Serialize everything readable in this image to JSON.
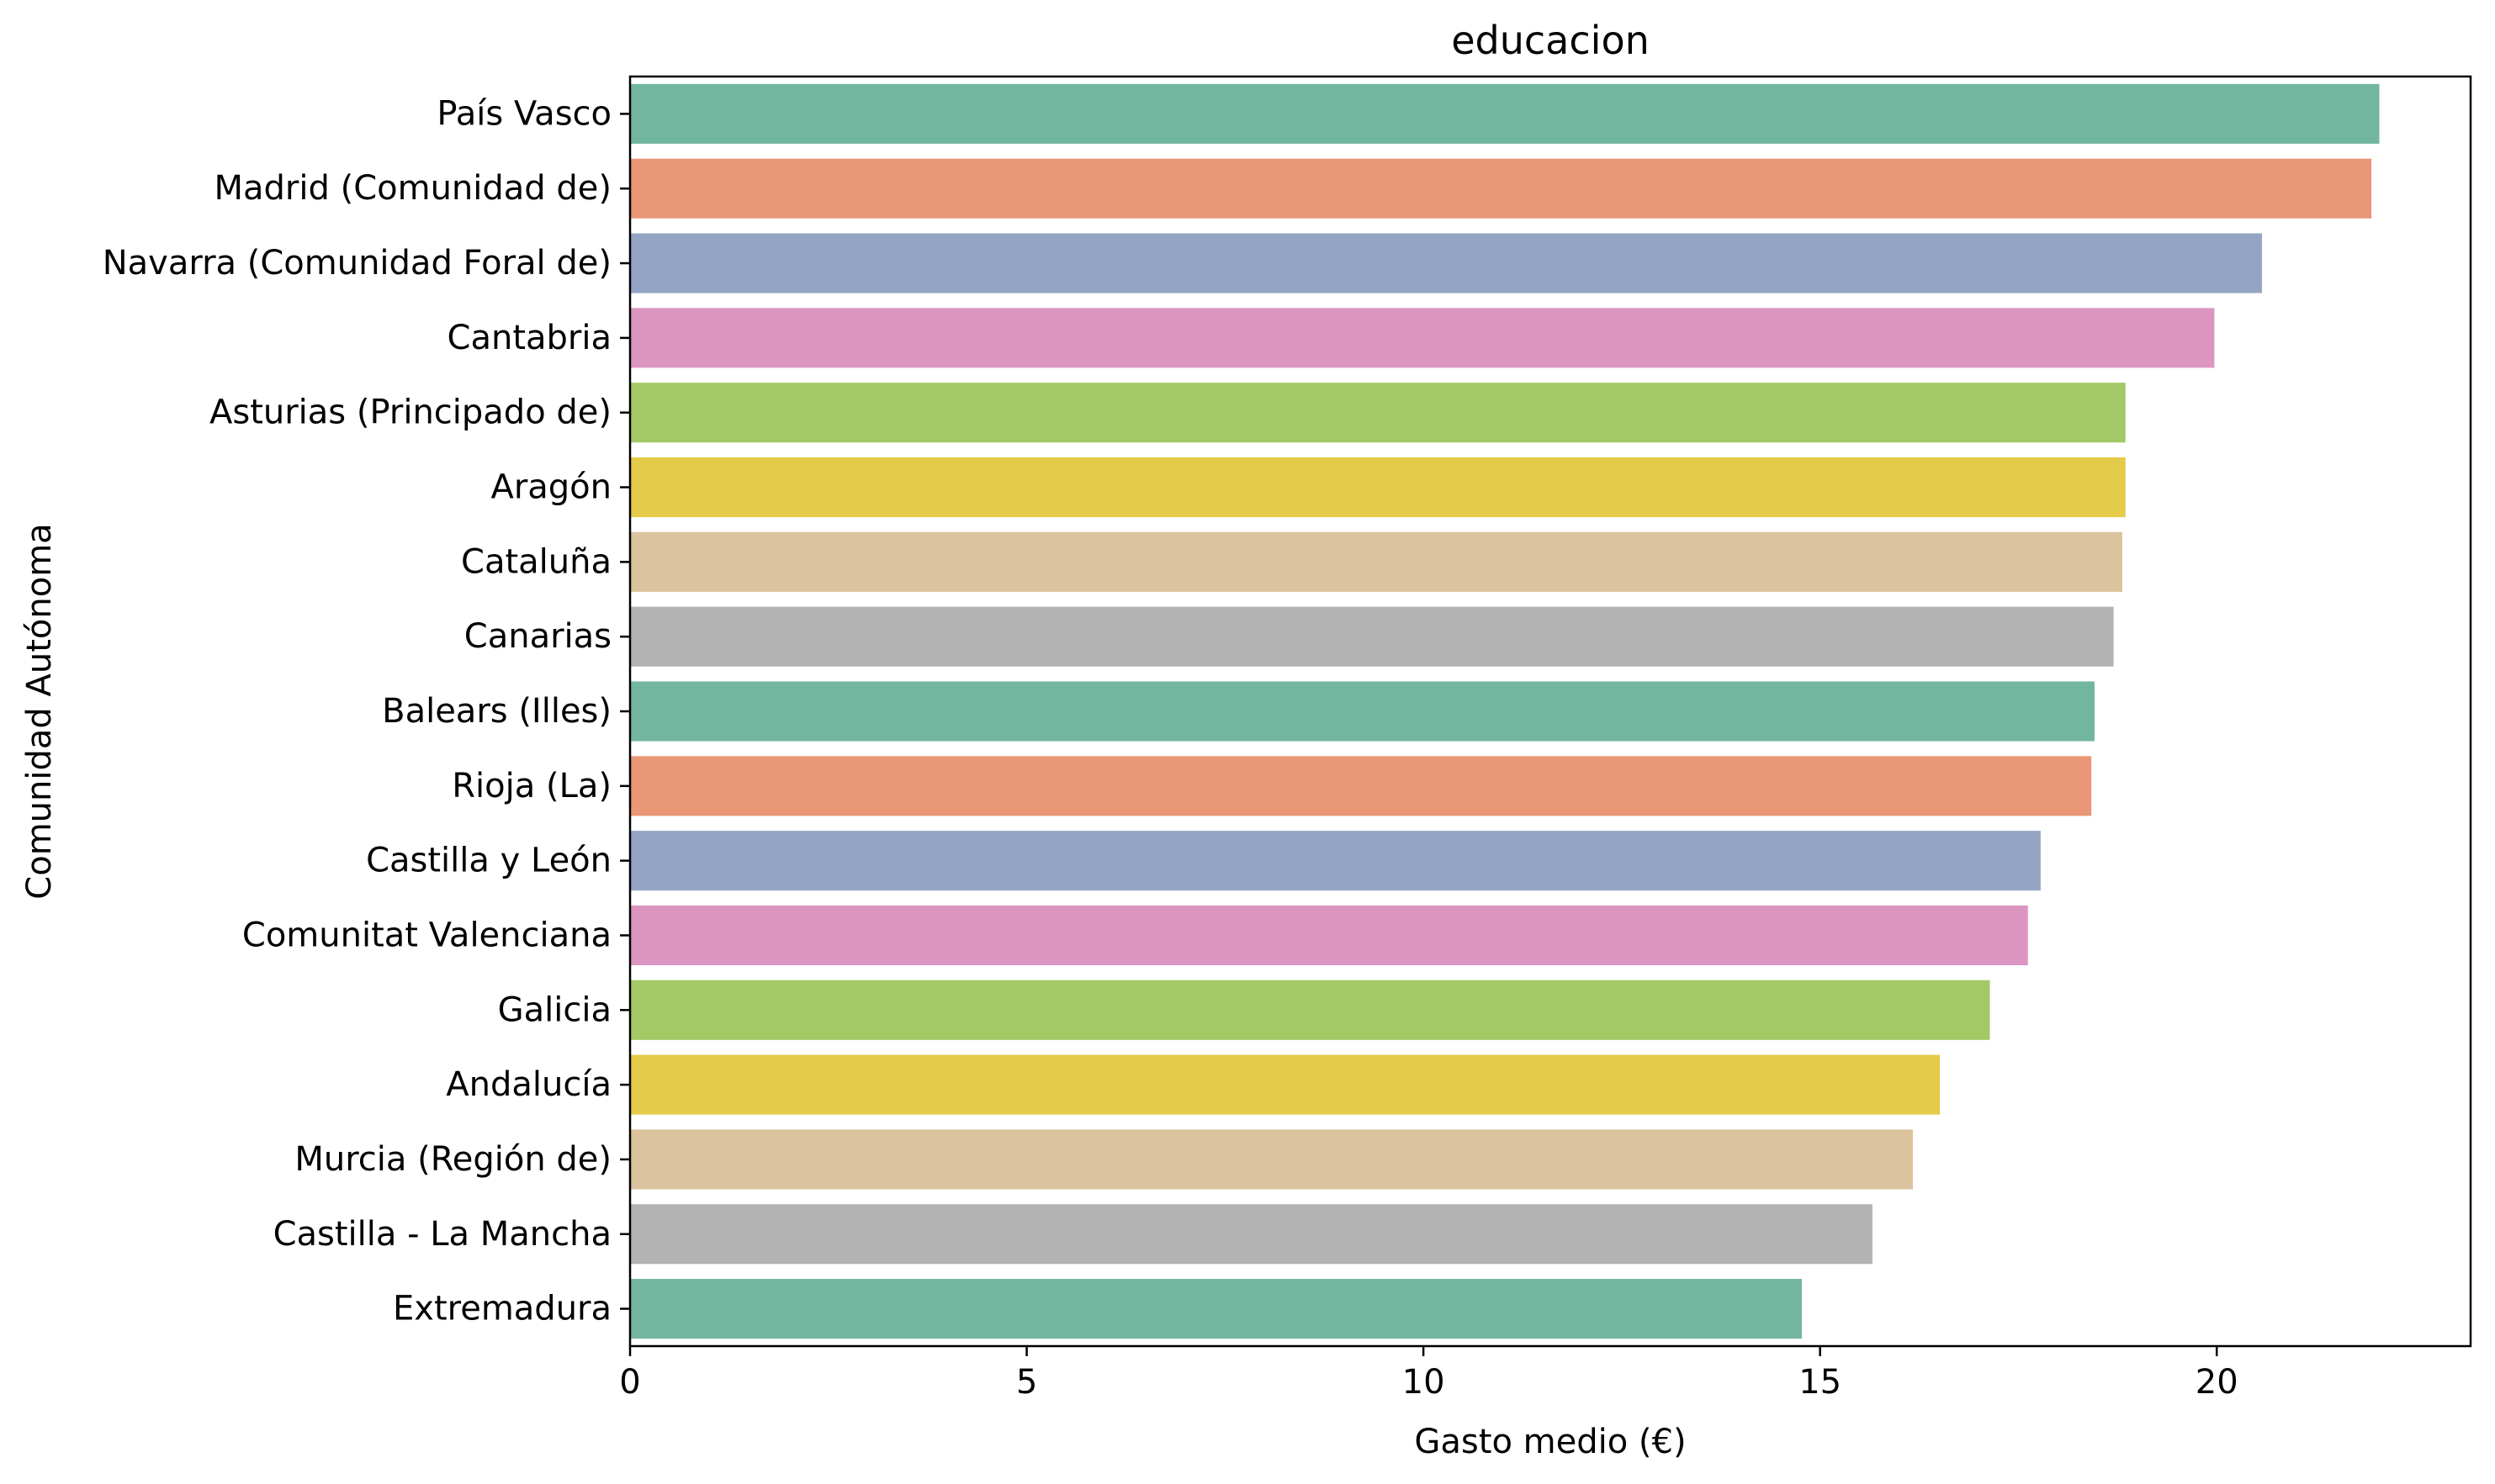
{
  "chart_data": {
    "type": "bar",
    "orientation": "horizontal",
    "title": "educacion",
    "xlabel": "Gasto medio (€)",
    "ylabel": "Comunidad Autónoma",
    "xlim": [
      0,
      23.2
    ],
    "xticks": [
      0,
      5,
      10,
      15,
      20
    ],
    "grid": false,
    "categories": [
      "País Vasco",
      "Madrid (Comunidad de)",
      "Navarra (Comunidad Foral de)",
      "Cantabria",
      "Asturias (Principado de)",
      "Aragón",
      "Cataluña",
      "Canarias",
      "Balears (Illes)",
      "Rioja (La)",
      "Castilla y León",
      "Comunitat Valenciana",
      "Galicia",
      "Andalucía",
      "Murcia (Región de)",
      "Castilla - La Mancha",
      "Extremadura"
    ],
    "values": [
      22.05,
      21.95,
      20.57,
      19.97,
      18.85,
      18.85,
      18.81,
      18.7,
      18.46,
      18.42,
      17.78,
      17.62,
      17.14,
      16.51,
      16.17,
      15.66,
      14.77
    ],
    "colors": [
      "#73b6a0",
      "#ea9777",
      "#94a4c4",
      "#dc95c1",
      "#a3c966",
      "#e4cb49",
      "#dbc39e",
      "#b3b3b3",
      "#73b6a0",
      "#ea9777",
      "#94a4c4",
      "#dc95c1",
      "#a3c966",
      "#e4cb49",
      "#dbc39e",
      "#b3b3b3",
      "#73b6a0"
    ]
  }
}
